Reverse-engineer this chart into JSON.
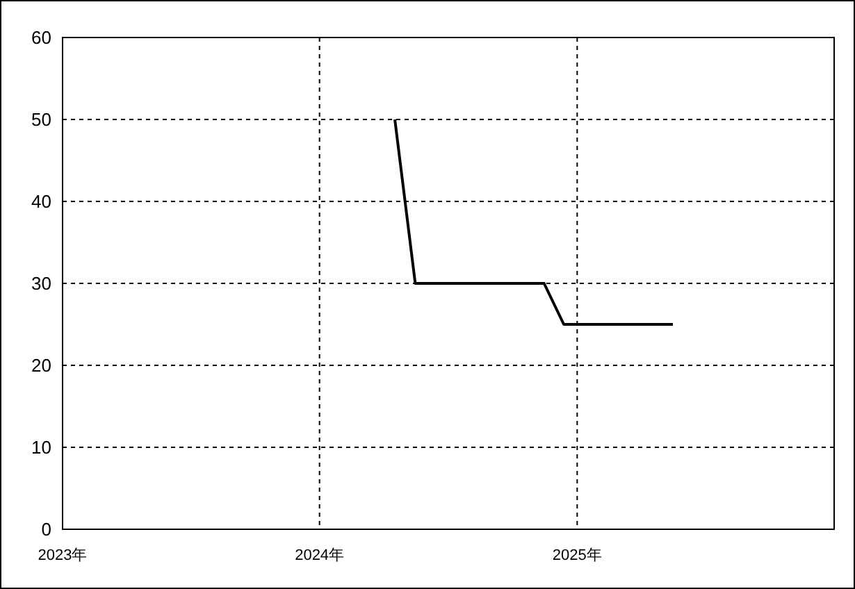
{
  "chart_data": {
    "type": "line",
    "x": [
      "2024-04-17",
      "2024-05-16",
      "2024-11-15",
      "2024-12-13",
      "2025-05-17"
    ],
    "series": [
      {
        "color": "#000000",
        "values": [
          50,
          30,
          30,
          25,
          25
        ]
      }
    ],
    "xlim": [
      "2023-01-01",
      "2026-01-01"
    ],
    "xticks": [
      {
        "value": "2023-01-01",
        "label": "2023年"
      },
      {
        "value": "2024-01-01",
        "label": "2024年"
      },
      {
        "value": "2025-01-01",
        "label": "2025年"
      }
    ],
    "ylim": [
      0,
      60
    ],
    "yticks": [
      0,
      10,
      20,
      30,
      40,
      50,
      60
    ],
    "grid": true,
    "marker": "none",
    "line_style": "solid"
  }
}
